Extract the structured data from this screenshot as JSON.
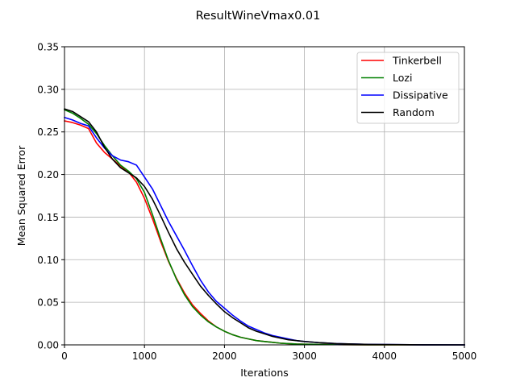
{
  "chart_data": {
    "type": "line",
    "title": "ResultWineVmax0.01",
    "xlabel": "Iterations",
    "ylabel": "Mean Squared Error",
    "xlim": [
      0,
      5000
    ],
    "ylim": [
      0,
      0.35
    ],
    "xticks": [
      0,
      1000,
      2000,
      3000,
      4000,
      5000
    ],
    "xtick_labels": [
      "0",
      "1000",
      "2000",
      "3000",
      "4000",
      "5000"
    ],
    "yticks": [
      0.0,
      0.05,
      0.1,
      0.15,
      0.2,
      0.25,
      0.3,
      0.35
    ],
    "ytick_labels": [
      "0.00",
      "0.05",
      "0.10",
      "0.15",
      "0.20",
      "0.25",
      "0.30",
      "0.35"
    ],
    "grid": true,
    "legend_position": "top-right",
    "series": [
      {
        "name": "Tinkerbell",
        "color": "#ff0000",
        "x": [
          0,
          100,
          200,
          300,
          400,
          500,
          600,
          700,
          800,
          900,
          1000,
          1100,
          1200,
          1300,
          1400,
          1500,
          1600,
          1700,
          1800,
          1900,
          2000,
          2100,
          2200,
          2300,
          2400,
          2500,
          2600,
          2700,
          2800,
          2900,
          3000,
          3200,
          3400,
          3600,
          3800,
          4000,
          4500,
          5000
        ],
        "values": [
          0.263,
          0.261,
          0.258,
          0.254,
          0.237,
          0.226,
          0.218,
          0.21,
          0.203,
          0.191,
          0.172,
          0.148,
          0.122,
          0.098,
          0.078,
          0.061,
          0.047,
          0.037,
          0.028,
          0.021,
          0.016,
          0.012,
          0.009,
          0.007,
          0.005,
          0.004,
          0.003,
          0.002,
          0.0015,
          0.001,
          0.0008,
          0.0005,
          0.0003,
          0.0002,
          0.0001,
          0.0001,
          5e-05,
          0.0
        ]
      },
      {
        "name": "Lozi",
        "color": "#008000",
        "x": [
          0,
          100,
          200,
          300,
          400,
          500,
          600,
          700,
          800,
          900,
          1000,
          1100,
          1200,
          1300,
          1400,
          1500,
          1600,
          1700,
          1800,
          1900,
          2000,
          2100,
          2200,
          2300,
          2400,
          2500,
          2600,
          2700,
          2800,
          2900,
          3000,
          3200,
          3400,
          3600,
          3800,
          4000,
          4500,
          5000
        ],
        "values": [
          0.276,
          0.272,
          0.266,
          0.259,
          0.248,
          0.234,
          0.222,
          0.211,
          0.204,
          0.195,
          0.179,
          0.153,
          0.125,
          0.099,
          0.077,
          0.059,
          0.045,
          0.035,
          0.027,
          0.021,
          0.016,
          0.012,
          0.009,
          0.007,
          0.005,
          0.004,
          0.003,
          0.002,
          0.0015,
          0.001,
          0.0008,
          0.0005,
          0.0003,
          0.0002,
          0.0001,
          0.0001,
          5e-05,
          0.0
        ]
      },
      {
        "name": "Dissipative",
        "color": "#0000ff",
        "x": [
          0,
          100,
          200,
          300,
          400,
          500,
          600,
          700,
          800,
          900,
          1000,
          1100,
          1200,
          1300,
          1400,
          1500,
          1600,
          1700,
          1800,
          1900,
          2000,
          2100,
          2200,
          2300,
          2400,
          2500,
          2600,
          2700,
          2800,
          2900,
          3000,
          3200,
          3400,
          3600,
          3800,
          4000,
          4500,
          5000
        ],
        "values": [
          0.267,
          0.264,
          0.26,
          0.257,
          0.243,
          0.231,
          0.222,
          0.217,
          0.215,
          0.211,
          0.197,
          0.183,
          0.164,
          0.145,
          0.128,
          0.111,
          0.093,
          0.076,
          0.062,
          0.051,
          0.043,
          0.035,
          0.028,
          0.022,
          0.018,
          0.014,
          0.011,
          0.009,
          0.007,
          0.005,
          0.004,
          0.0025,
          0.0015,
          0.001,
          0.0006,
          0.0004,
          0.0001,
          0.0
        ]
      },
      {
        "name": "Random",
        "color": "#000000",
        "x": [
          0,
          100,
          200,
          300,
          400,
          500,
          600,
          700,
          800,
          900,
          1000,
          1100,
          1200,
          1300,
          1400,
          1500,
          1600,
          1700,
          1800,
          1900,
          2000,
          2100,
          2200,
          2300,
          2400,
          2500,
          2600,
          2700,
          2800,
          2900,
          3000,
          3200,
          3400,
          3600,
          3800,
          4000,
          4500,
          5000
        ],
        "values": [
          0.277,
          0.274,
          0.268,
          0.262,
          0.25,
          0.232,
          0.218,
          0.208,
          0.202,
          0.196,
          0.186,
          0.171,
          0.152,
          0.132,
          0.113,
          0.097,
          0.083,
          0.069,
          0.058,
          0.048,
          0.039,
          0.032,
          0.026,
          0.02,
          0.016,
          0.013,
          0.01,
          0.008,
          0.006,
          0.005,
          0.004,
          0.0025,
          0.0015,
          0.001,
          0.0006,
          0.0004,
          0.0001,
          0.0
        ]
      }
    ]
  }
}
